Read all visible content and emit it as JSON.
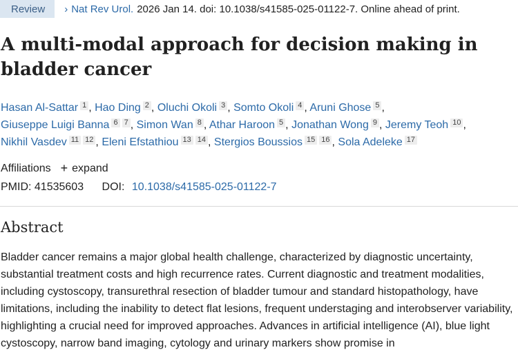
{
  "citation": {
    "badge": "Review",
    "chevron": "›",
    "journal": "Nat Rev Urol.",
    "details": "2026 Jan 14. doi: 10.1038/s41585-025-01122-7. Online ahead of print."
  },
  "article": {
    "title": "A multi-modal approach for decision making in bladder cancer"
  },
  "authors": [
    {
      "name": "Hasan Al-Sattar",
      "sups": [
        "1"
      ],
      "sep": ","
    },
    {
      "name": "Hao Ding",
      "sups": [
        "2"
      ],
      "sep": ","
    },
    {
      "name": "Oluchi Okoli",
      "sups": [
        "3"
      ],
      "sep": ","
    },
    {
      "name": "Somto Okoli",
      "sups": [
        "4"
      ],
      "sep": ","
    },
    {
      "name": "Aruni Ghose",
      "sups": [
        "5"
      ],
      "sep": ","
    },
    {
      "name": "Giuseppe Luigi Banna",
      "sups": [
        "6",
        "7"
      ],
      "sep": ","
    },
    {
      "name": "Simon Wan",
      "sups": [
        "8"
      ],
      "sep": ","
    },
    {
      "name": "Athar Haroon",
      "sups": [
        "5"
      ],
      "sep": ","
    },
    {
      "name": "Jonathan Wong",
      "sups": [
        "9"
      ],
      "sep": ","
    },
    {
      "name": "Jeremy Teoh",
      "sups": [
        "10"
      ],
      "sep": ","
    },
    {
      "name": "Nikhil Vasdev",
      "sups": [
        "11",
        "12"
      ],
      "sep": ","
    },
    {
      "name": "Eleni Efstathiou",
      "sups": [
        "13",
        "14"
      ],
      "sep": ","
    },
    {
      "name": "Stergios Boussios",
      "sups": [
        "15",
        "16"
      ],
      "sep": ","
    },
    {
      "name": "Sola Adeleke",
      "sups": [
        "17"
      ],
      "sep": ""
    }
  ],
  "affiliations": {
    "label": "Affiliations",
    "expand_icon": "plus-icon",
    "expand_label": "expand"
  },
  "ids": {
    "pmid_label": "PMID:",
    "pmid": "41535603",
    "doi_label": "DOI:",
    "doi": "10.1038/s41585-025-01122-7"
  },
  "abstract": {
    "heading": "Abstract",
    "text": "Bladder cancer remains a major global health challenge, characterized by diagnostic uncertainty, substantial treatment costs and high recurrence rates. Current diagnostic and treatment modalities, including cystoscopy, transurethral resection of bladder tumour and standard histopathology, have limitations, including the inability to detect flat lesions, frequent understaging and interobserver variability, highlighting a crucial need for improved approaches. Advances in artificial intelligence (AI), blue light cystoscopy, narrow band imaging, cytology and urinary markers show promise in"
  },
  "colors": {
    "link": "#2c6aa8",
    "badge_bg": "#dbe6f1",
    "badge_text": "#3b5f87",
    "text": "#212121"
  }
}
